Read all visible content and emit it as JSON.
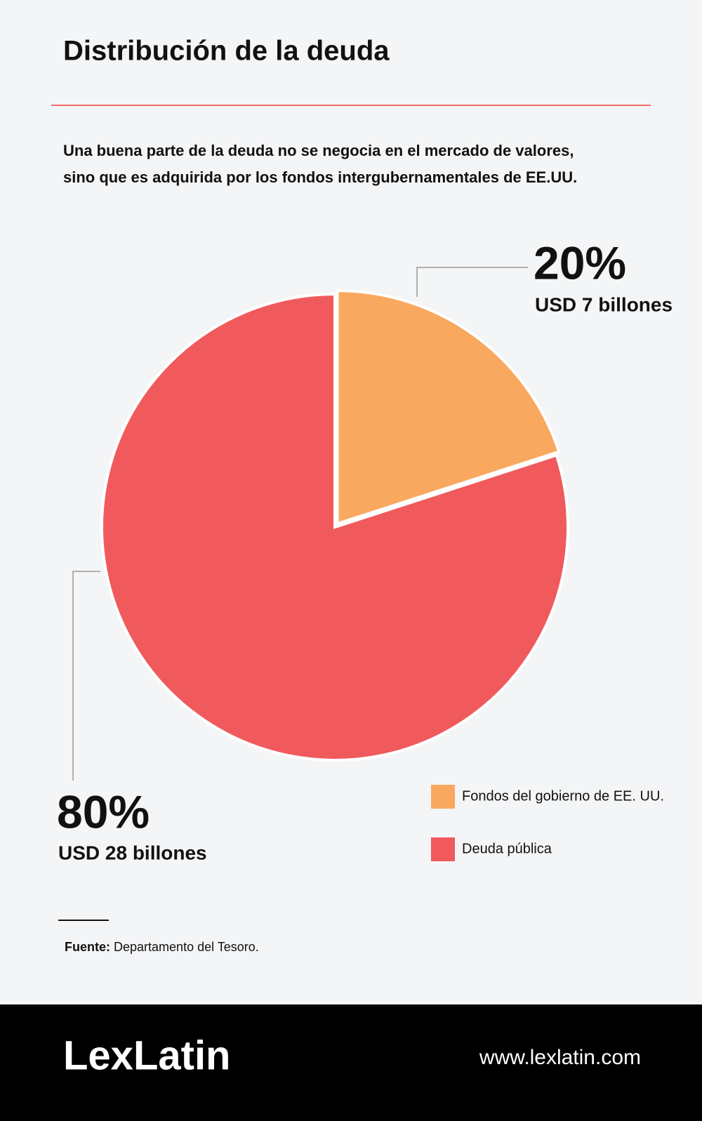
{
  "chart_data": {
    "type": "pie",
    "title": "Distribución de la deuda",
    "subtitle": [
      "Una buena parte de la deuda no se negocia en el mercado de valores,",
      "sino que es adquirida por los fondos intergubernamentales de EE.UU."
    ],
    "categories": [
      "Fondos del gobierno de EE. UU.",
      "Deuda pública"
    ],
    "values": [
      20,
      80
    ],
    "value_labels": [
      "20%",
      "80%"
    ],
    "amount_labels": [
      "USD 7 billones",
      "USD 28 billones"
    ],
    "colors": [
      "#f9a85f",
      "#f05a5d"
    ]
  },
  "source": {
    "label": "Fuente:",
    "text": "Departamento del Tesoro."
  },
  "footer": {
    "brand": "LexLatin",
    "url": "www.lexlatin.com"
  }
}
